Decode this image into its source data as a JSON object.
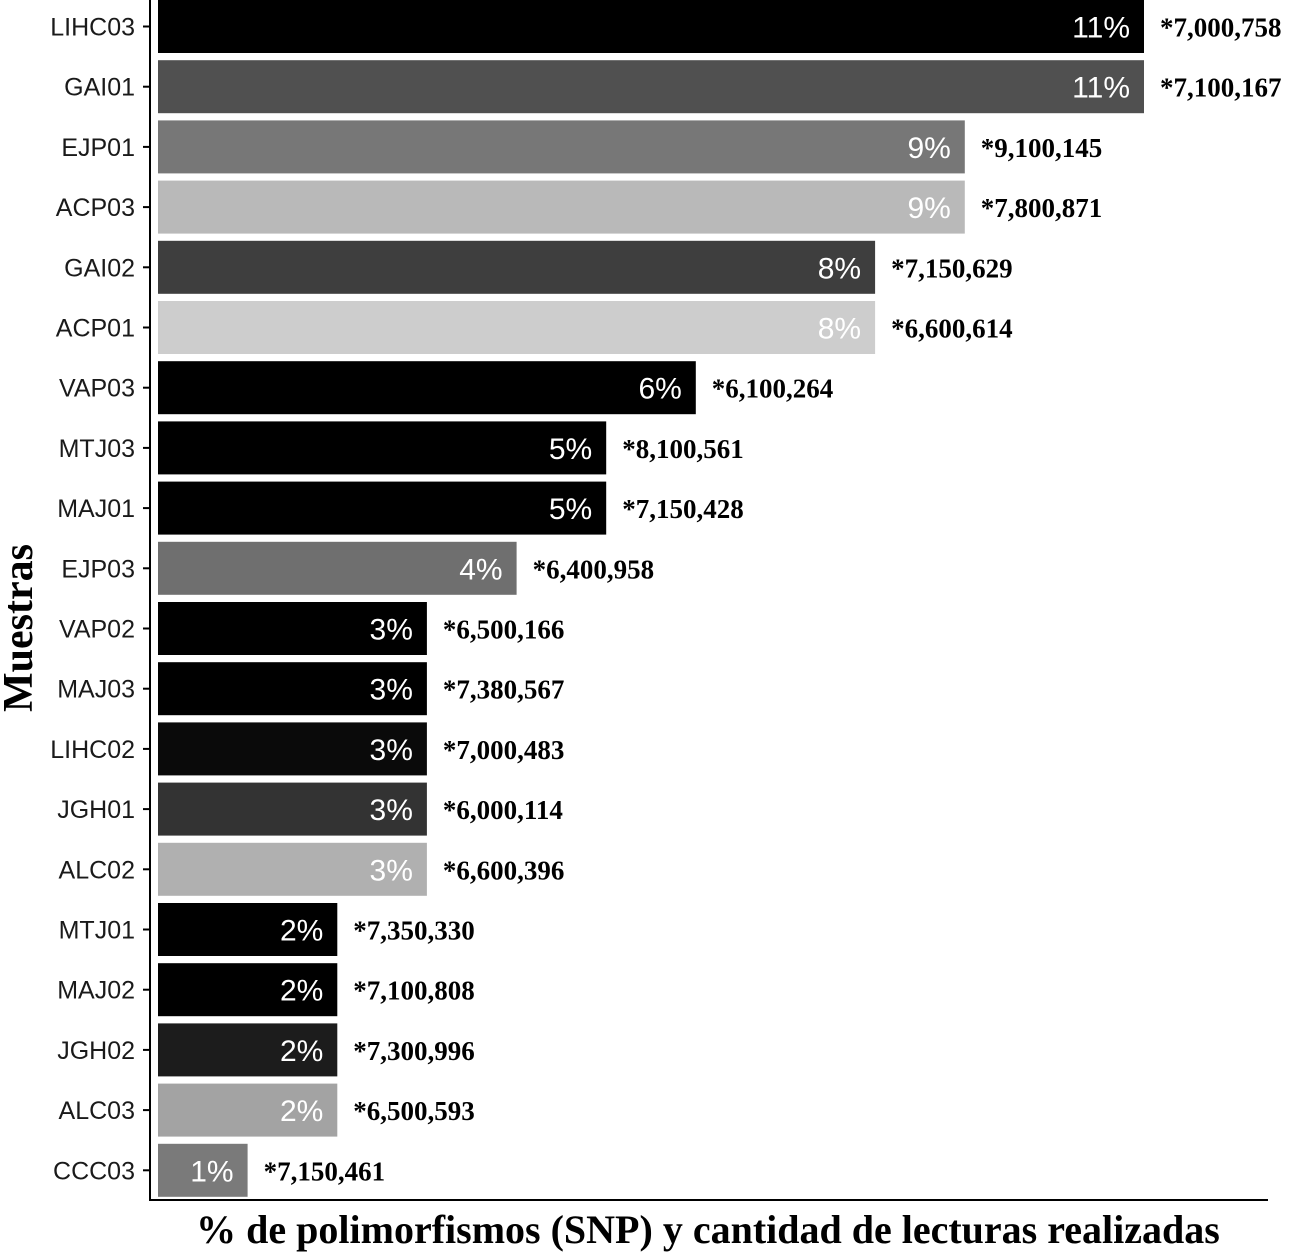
{
  "chart_data": {
    "type": "bar",
    "orientation": "horizontal",
    "xlabel": "% de polimorfismos (SNP) y cantidad de lecturas realizadas",
    "ylabel": "Muestras",
    "xlim": [
      0,
      11
    ],
    "grid": false,
    "legend": "none",
    "categories": [
      "LIHC03",
      "GAI01",
      "EJP01",
      "ACP03",
      "GAI02",
      "ACP01",
      "VAP03",
      "MTJ03",
      "MAJ01",
      "EJP03",
      "VAP02",
      "MAJ03",
      "LIHC02",
      "JGH01",
      "ALC02",
      "MTJ01",
      "MAJ02",
      "JGH02",
      "ALC03",
      "CCC03"
    ],
    "values": [
      11,
      11,
      9,
      9,
      8,
      8,
      6,
      5,
      5,
      4,
      3,
      3,
      3,
      3,
      3,
      2,
      2,
      2,
      2,
      1
    ],
    "value_labels": [
      "11%",
      "11%",
      "9%",
      "9%",
      "8%",
      "8%",
      "6%",
      "5%",
      "5%",
      "4%",
      "3%",
      "3%",
      "3%",
      "3%",
      "3%",
      "2%",
      "2%",
      "2%",
      "2%",
      "1%"
    ],
    "reads_labels": [
      "*7,000,758",
      "*7,100,167",
      "*9,100,145",
      "*7,800,871",
      "*7,150,629",
      "*6,600,614",
      "*6,100,264",
      "*8,100,561",
      "*7,150,428",
      "*6,400,958",
      "*6,500,166",
      "*7,380,567",
      "*7,000,483",
      "*6,000,114",
      "*6,600,396",
      "*7,350,330",
      "*7,100,808",
      "*7,300,996",
      "*6,500,593",
      "*7,150,461"
    ],
    "colors": [
      "#000000",
      "#505050",
      "#777777",
      "#b9b9b9",
      "#3e3e3e",
      "#cdcdcd",
      "#000000",
      "#000000",
      "#000000",
      "#6f6f6f",
      "#000000",
      "#000000",
      "#0a0a0a",
      "#333333",
      "#b0b0b0",
      "#000000",
      "#000000",
      "#1c1c1c",
      "#a3a3a3",
      "#7a7a7a"
    ]
  }
}
